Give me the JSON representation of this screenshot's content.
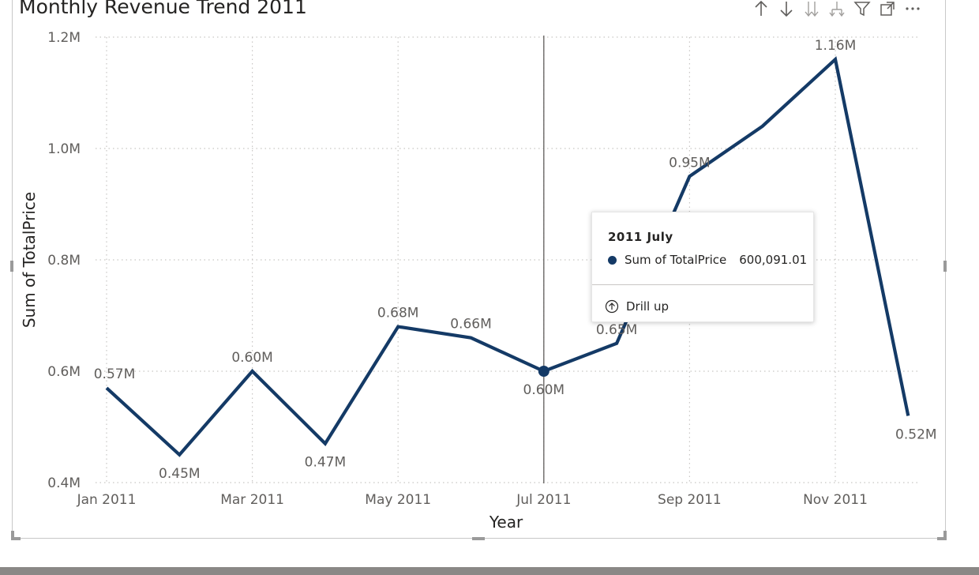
{
  "visual": {
    "title": "Monthly Revenue Trend 2011"
  },
  "header_icons": [
    {
      "name": "drill-up-arrow-icon"
    },
    {
      "name": "drill-down-arrow-icon"
    },
    {
      "name": "expand-next-level-icon"
    },
    {
      "name": "expand-hierarchy-icon"
    },
    {
      "name": "filter-icon"
    },
    {
      "name": "focus-mode-icon"
    },
    {
      "name": "more-options-icon"
    }
  ],
  "chart_data": {
    "type": "line",
    "title": "Monthly Revenue Trend 2011",
    "xlabel": "Year",
    "ylabel": "Sum of TotalPrice",
    "ylim": [
      0.4,
      1.2
    ],
    "yticks": [
      {
        "value": 0.4,
        "label": "0.4M"
      },
      {
        "value": 0.6,
        "label": "0.6M"
      },
      {
        "value": 0.8,
        "label": "0.8M"
      },
      {
        "value": 1.0,
        "label": "1.0M"
      },
      {
        "value": 1.2,
        "label": "1.2M"
      }
    ],
    "xtick_labels": [
      "Jan 2011",
      "Mar 2011",
      "May 2011",
      "Jul 2011",
      "Sep 2011",
      "Nov 2011"
    ],
    "x": [
      "2011-01",
      "2011-02",
      "2011-03",
      "2011-04",
      "2011-05",
      "2011-06",
      "2011-07",
      "2011-08",
      "2011-09",
      "2011-10",
      "2011-11",
      "2011-12"
    ],
    "series": [
      {
        "values": [
          0.57,
          0.45,
          0.6,
          0.47,
          0.68,
          0.66,
          0.6,
          0.65,
          0.95,
          1.04,
          1.16,
          0.52
        ],
        "labels": [
          "0.57M",
          "0.45M",
          "0.60M",
          "0.47M",
          "0.68M",
          "0.66M",
          "0.60M",
          "0.65M",
          "0.95M",
          "",
          "1.16M",
          "0.52M"
        ],
        "color": "#143a66"
      }
    ],
    "highlighted_index": 6,
    "grid": true,
    "grid_style": "dotted"
  },
  "tooltip": {
    "title": "2011 July",
    "series_name": "Sum of TotalPrice",
    "value": "600,091.01",
    "action": "Drill up",
    "dot_color": "#143a66"
  },
  "colors": {
    "line": "#143a66",
    "grid": "#c8c6c4",
    "crosshair": "#605e5c"
  }
}
